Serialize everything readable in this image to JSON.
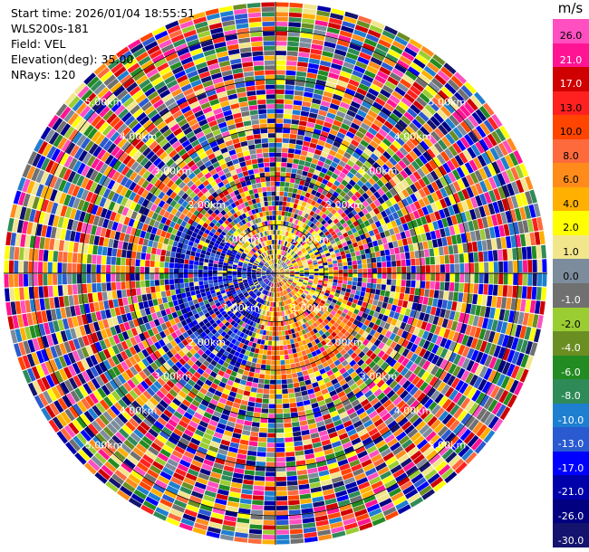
{
  "header": {
    "start_time": "Start time: 2026/01/04 18:55:51",
    "instrument": "WLS200s-181",
    "field": "Field: VEL",
    "elevation": "Elevation(deg): 35.00",
    "nrays": "NRays: 120"
  },
  "chart_data": {
    "type": "ppi",
    "field": "VEL",
    "units": "m/s",
    "n_rays": 120,
    "range_rings_km": [
      1,
      2,
      3,
      4,
      5
    ],
    "ring_labels": [
      "1.00km",
      "2.00km",
      "3.00km",
      "4.00km",
      "5.00km"
    ],
    "colorbar": {
      "unit": "m/s",
      "levels": [
        "26.0",
        "21.0",
        "17.0",
        "13.0",
        "10.0",
        "8.0",
        "6.0",
        "4.0",
        "2.0",
        "1.0",
        "0.0",
        "-1.0",
        "-2.0",
        "-4.0",
        "-6.0",
        "-8.0",
        "-10.0",
        "-13.0",
        "-17.0",
        "-21.0",
        "-26.0",
        "-30.0"
      ],
      "colors": [
        "#ff4fc0",
        "#ff1493",
        "#d00000",
        "#ff2020",
        "#ff4500",
        "#ff6a3c",
        "#ff8c1a",
        "#ffb000",
        "#ffff00",
        "#f2e68c",
        "#7c8c9c",
        "#707070",
        "#9acd32",
        "#6b8e23",
        "#228b22",
        "#2e8b57",
        "#1e7fd0",
        "#2a5ad0",
        "#0000ff",
        "#0000aa",
        "#000080",
        "#14146e"
      ]
    }
  }
}
